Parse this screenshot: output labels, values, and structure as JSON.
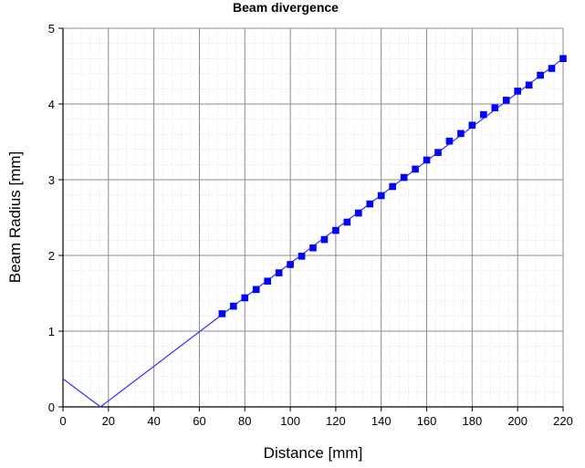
{
  "chart_data": {
    "type": "line",
    "title": "Beam divergence",
    "xlabel": "Distance [mm]",
    "ylabel": "Beam Radius [mm]",
    "xlim": [
      0,
      220
    ],
    "ylim": [
      0,
      5
    ],
    "xticks": [
      0,
      20,
      40,
      60,
      80,
      100,
      120,
      140,
      160,
      180,
      200,
      220
    ],
    "yticks": [
      0,
      1,
      2,
      3,
      4,
      5
    ],
    "grid": true,
    "legend": "none",
    "series": [
      {
        "kind": "line",
        "color": "#3030ff",
        "x": [
          0,
          16.5,
          70,
          220
        ],
        "y": [
          0.37,
          0.0,
          1.22,
          4.6
        ]
      },
      {
        "kind": "scatter",
        "color": "#0000ff",
        "marker": "square",
        "x": [
          70,
          75,
          80,
          85,
          90,
          95,
          100,
          105,
          110,
          115,
          120,
          125,
          130,
          135,
          140,
          145,
          150,
          155,
          160,
          165,
          170,
          175,
          180,
          185,
          190,
          195,
          200,
          205,
          210,
          215,
          220
        ],
        "y": [
          1.23,
          1.33,
          1.44,
          1.55,
          1.66,
          1.77,
          1.88,
          1.99,
          2.1,
          2.21,
          2.33,
          2.44,
          2.56,
          2.68,
          2.79,
          2.91,
          3.03,
          3.14,
          3.26,
          3.36,
          3.51,
          3.61,
          3.72,
          3.86,
          3.95,
          4.05,
          4.17,
          4.25,
          4.38,
          4.47,
          4.6
        ]
      }
    ]
  }
}
